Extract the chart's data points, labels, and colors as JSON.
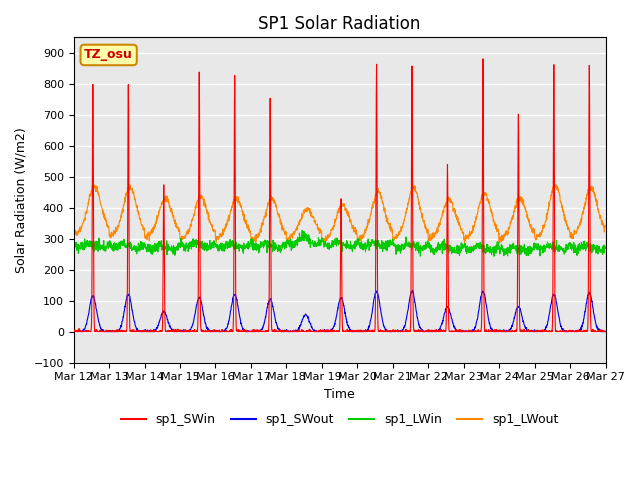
{
  "title": "SP1 Solar Radiation",
  "ylabel": "Solar Radiation (W/m2)",
  "xlabel": "Time",
  "ylim": [
    -100,
    950
  ],
  "background_color": "#e8e8e8",
  "grid_color": "white",
  "tick_labels": [
    "Mar 12",
    "Mar 13",
    "Mar 14",
    "Mar 15",
    "Mar 16",
    "Mar 17",
    "Mar 18",
    "Mar 19",
    "Mar 20",
    "Mar 21",
    "Mar 22",
    "Mar 23",
    "Mar 24",
    "Mar 25",
    "Mar 26",
    "Mar 27"
  ],
  "series_colors": {
    "sp1_SWin": "#ff0000",
    "sp1_SWout": "#0000ee",
    "sp1_LWin": "#00cc00",
    "sp1_LWout": "#ff8800"
  },
  "annotation_text": "TZ_osu",
  "annotation_bg": "#ffffaa",
  "annotation_border": "#cc8800",
  "title_fontsize": 12,
  "axis_fontsize": 9,
  "tick_fontsize": 8,
  "legend_fontsize": 9,
  "n_days": 15,
  "pts_per_day": 144,
  "SWin_peaks": [
    800,
    800,
    475,
    835,
    830,
    750,
    0,
    430,
    860,
    855,
    540,
    880,
    700,
    860,
    860
  ],
  "SWout_peaks": [
    115,
    120,
    65,
    110,
    120,
    105,
    55,
    110,
    130,
    130,
    80,
    130,
    80,
    120,
    125
  ],
  "LWin_base": [
    285,
    285,
    280,
    290,
    285,
    285,
    295,
    290,
    290,
    285,
    280,
    280,
    275,
    280,
    280
  ],
  "LWout_base": [
    330,
    325,
    320,
    315,
    315,
    310,
    315,
    310,
    315,
    315,
    315,
    315,
    315,
    320,
    325
  ],
  "LWout_day_bump": [
    120,
    120,
    90,
    100,
    95,
    100,
    60,
    80,
    115,
    130,
    90,
    110,
    95,
    130,
    120
  ]
}
